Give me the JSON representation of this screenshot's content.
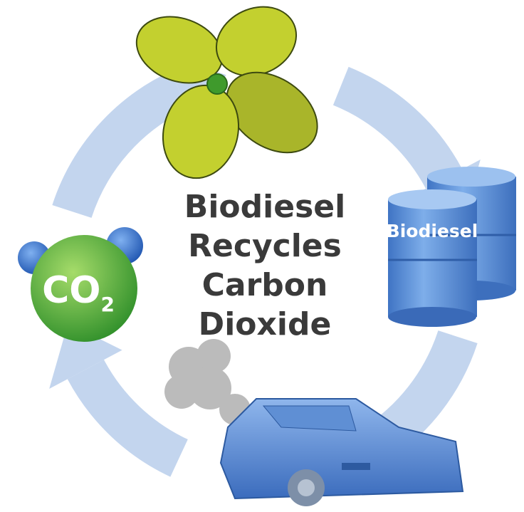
{
  "title": {
    "lines": [
      "Biodiesel",
      "Recycles",
      "Carbon",
      "Dioxide"
    ]
  },
  "nodes": [
    {
      "label": "Biodiesel"
    },
    {
      "label": "CO",
      "subscript": "2"
    }
  ]
}
